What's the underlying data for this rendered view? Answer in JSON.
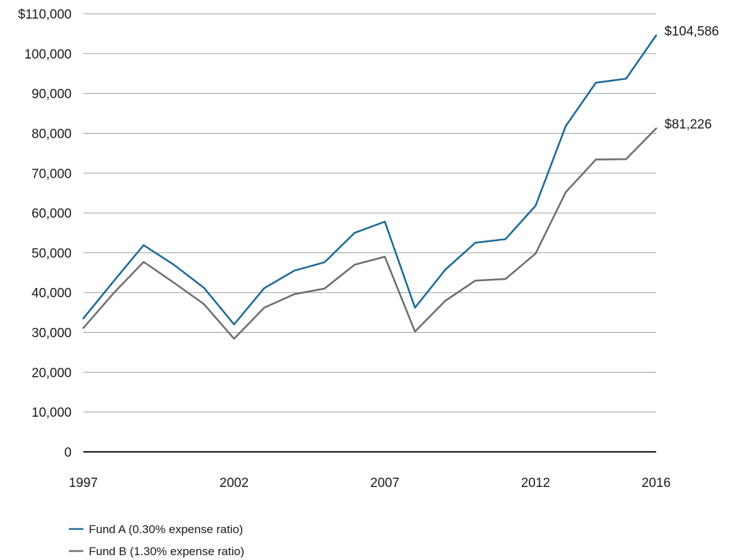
{
  "chart_data": {
    "type": "line",
    "x": [
      1997,
      1998,
      1999,
      2000,
      2001,
      2002,
      2003,
      2004,
      2005,
      2006,
      2007,
      2008,
      2009,
      2010,
      2011,
      2012,
      2013,
      2014,
      2015,
      2016
    ],
    "x_tick_labels": [
      "1997",
      "2002",
      "2007",
      "2012",
      "2016"
    ],
    "y_tick_labels": [
      "$110,000",
      "100,000",
      "90,000",
      "80,000",
      "70,000",
      "60,000",
      "50,000",
      "40,000",
      "30,000",
      "20,000",
      "10,000",
      "0"
    ],
    "ylim": [
      0,
      110000
    ],
    "xlim": [
      1997,
      2016
    ],
    "grid": "horizontal",
    "legend_position": "bottom-left",
    "series": [
      {
        "name": "Fund A (0.30% expense ratio)",
        "color": "#1b6a99",
        "values": [
          33500,
          42800,
          51900,
          47000,
          41200,
          32000,
          41100,
          45500,
          47600,
          55000,
          57800,
          36200,
          45700,
          52500,
          53400,
          61800,
          81800,
          92700,
          93700,
          104586
        ],
        "end_label": "$104,586"
      },
      {
        "name": "Fund B (1.30% expense ratio)",
        "color": "#6e6e6e",
        "values": [
          31100,
          39800,
          47700,
          42500,
          37100,
          28400,
          36200,
          39600,
          41000,
          47000,
          49000,
          30200,
          37900,
          43000,
          43400,
          49800,
          65200,
          73400,
          73500,
          81226
        ],
        "end_label": "$81,226"
      }
    ]
  }
}
